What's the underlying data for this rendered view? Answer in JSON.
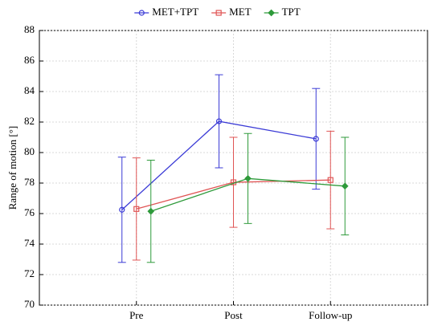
{
  "chart_data": {
    "type": "line",
    "ylabel": "Range of motion [°]",
    "categories": [
      "Pre",
      "Post",
      "Follow-up"
    ],
    "series": [
      {
        "name": "MET+TPT",
        "color": "#3b3bd6",
        "marker": "circle",
        "values": [
          76.25,
          82.05,
          80.9
        ],
        "errors": [
          3.45,
          3.05,
          3.3
        ]
      },
      {
        "name": "MET",
        "color": "#e05555",
        "marker": "square",
        "values": [
          76.3,
          78.05,
          78.2
        ],
        "errors": [
          3.35,
          2.95,
          3.2
        ]
      },
      {
        "name": "TPT",
        "color": "#2e9a3a",
        "marker": "diamond",
        "values": [
          76.15,
          78.3,
          77.8
        ],
        "errors": [
          3.35,
          2.95,
          3.2
        ]
      }
    ],
    "ylim": [
      70,
      88
    ],
    "yticks": [
      70,
      72,
      74,
      76,
      78,
      80,
      82,
      84,
      86,
      88
    ],
    "grid": true,
    "legend": "top"
  }
}
